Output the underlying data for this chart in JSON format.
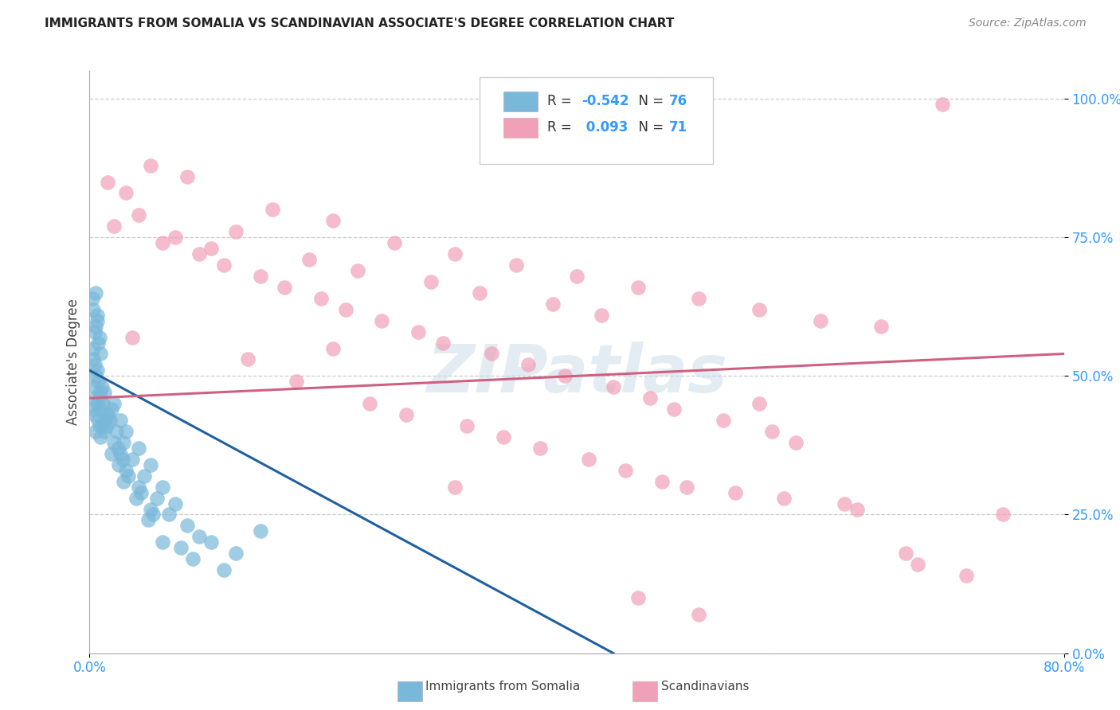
{
  "title": "IMMIGRANTS FROM SOMALIA VS SCANDINAVIAN ASSOCIATE'S DEGREE CORRELATION CHART",
  "source": "Source: ZipAtlas.com",
  "ylabel": "Associate's Degree",
  "ytick_labels": [
    "0.0%",
    "25.0%",
    "50.0%",
    "75.0%",
    "100.0%"
  ],
  "ytick_values": [
    0.0,
    25.0,
    50.0,
    75.0,
    100.0
  ],
  "xtick_left_label": "0.0%",
  "xtick_right_label": "80.0%",
  "xmin": 0.0,
  "xmax": 80.0,
  "ymin": 0.0,
  "ymax": 105.0,
  "somalia_color": "#7ab8d9",
  "scandinavian_color": "#f0a0b8",
  "somalia_line_color": "#2060a0",
  "scandinavian_line_color": "#d06080",
  "watermark": "ZIPatlas",
  "legend_r1": "R = -0.542",
  "legend_n1": "N = 76",
  "legend_r2": "R =  0.093",
  "legend_n2": "N = 71",
  "somalia_label": "Immigrants from Somalia",
  "scandinavian_label": "Scandinavians",
  "somalia_scatter": [
    [
      0.3,
      62
    ],
    [
      0.5,
      65
    ],
    [
      0.6,
      60
    ],
    [
      0.4,
      58
    ],
    [
      0.7,
      56
    ],
    [
      0.2,
      64
    ],
    [
      0.8,
      57
    ],
    [
      0.5,
      59
    ],
    [
      0.3,
      55
    ],
    [
      0.6,
      61
    ],
    [
      0.4,
      52
    ],
    [
      0.9,
      54
    ],
    [
      0.5,
      50
    ],
    [
      0.3,
      53
    ],
    [
      0.6,
      51
    ],
    [
      0.4,
      48
    ],
    [
      0.7,
      49
    ],
    [
      0.8,
      47
    ],
    [
      0.5,
      46
    ],
    [
      0.3,
      44
    ],
    [
      0.6,
      45
    ],
    [
      0.4,
      43
    ],
    [
      0.7,
      42
    ],
    [
      0.8,
      41
    ],
    [
      0.5,
      40
    ],
    [
      1.0,
      48
    ],
    [
      1.2,
      47
    ],
    [
      0.9,
      46
    ],
    [
      1.1,
      45
    ],
    [
      0.8,
      44
    ],
    [
      1.5,
      43
    ],
    [
      1.3,
      42
    ],
    [
      1.0,
      41
    ],
    [
      1.2,
      40
    ],
    [
      0.9,
      39
    ],
    [
      2.0,
      45
    ],
    [
      1.8,
      44
    ],
    [
      1.5,
      43
    ],
    [
      1.7,
      42
    ],
    [
      1.4,
      41
    ],
    [
      2.5,
      42
    ],
    [
      2.2,
      40
    ],
    [
      2.0,
      38
    ],
    [
      2.3,
      37
    ],
    [
      1.8,
      36
    ],
    [
      3.0,
      40
    ],
    [
      2.8,
      38
    ],
    [
      2.5,
      36
    ],
    [
      2.7,
      35
    ],
    [
      2.4,
      34
    ],
    [
      4.0,
      37
    ],
    [
      3.5,
      35
    ],
    [
      3.0,
      33
    ],
    [
      3.2,
      32
    ],
    [
      2.8,
      31
    ],
    [
      5.0,
      34
    ],
    [
      4.5,
      32
    ],
    [
      4.0,
      30
    ],
    [
      4.2,
      29
    ],
    [
      3.8,
      28
    ],
    [
      6.0,
      30
    ],
    [
      5.5,
      28
    ],
    [
      5.0,
      26
    ],
    [
      5.2,
      25
    ],
    [
      4.8,
      24
    ],
    [
      7.0,
      27
    ],
    [
      6.5,
      25
    ],
    [
      8.0,
      23
    ],
    [
      9.0,
      21
    ],
    [
      10.0,
      20
    ],
    [
      12.0,
      18
    ],
    [
      14.0,
      22
    ],
    [
      6.0,
      20
    ],
    [
      7.5,
      19
    ],
    [
      8.5,
      17
    ],
    [
      11.0,
      15
    ]
  ],
  "scandinavian_scatter": [
    [
      1.5,
      85
    ],
    [
      5.0,
      88
    ],
    [
      15.0,
      80
    ],
    [
      3.0,
      83
    ],
    [
      8.0,
      86
    ],
    [
      20.0,
      78
    ],
    [
      12.0,
      76
    ],
    [
      25.0,
      74
    ],
    [
      7.0,
      75
    ],
    [
      30.0,
      72
    ],
    [
      10.0,
      73
    ],
    [
      35.0,
      70
    ],
    [
      18.0,
      71
    ],
    [
      40.0,
      68
    ],
    [
      22.0,
      69
    ],
    [
      45.0,
      66
    ],
    [
      28.0,
      67
    ],
    [
      50.0,
      64
    ],
    [
      32.0,
      65
    ],
    [
      55.0,
      62
    ],
    [
      38.0,
      63
    ],
    [
      60.0,
      60
    ],
    [
      42.0,
      61
    ],
    [
      65.0,
      59
    ],
    [
      70.0,
      99
    ],
    [
      2.0,
      77
    ],
    [
      4.0,
      79
    ],
    [
      6.0,
      74
    ],
    [
      9.0,
      72
    ],
    [
      11.0,
      70
    ],
    [
      14.0,
      68
    ],
    [
      16.0,
      66
    ],
    [
      19.0,
      64
    ],
    [
      21.0,
      62
    ],
    [
      24.0,
      60
    ],
    [
      27.0,
      58
    ],
    [
      29.0,
      56
    ],
    [
      33.0,
      54
    ],
    [
      36.0,
      52
    ],
    [
      39.0,
      50
    ],
    [
      43.0,
      48
    ],
    [
      46.0,
      46
    ],
    [
      48.0,
      44
    ],
    [
      52.0,
      42
    ],
    [
      56.0,
      40
    ],
    [
      58.0,
      38
    ],
    [
      3.5,
      57
    ],
    [
      13.0,
      53
    ],
    [
      17.0,
      49
    ],
    [
      23.0,
      45
    ],
    [
      26.0,
      43
    ],
    [
      31.0,
      41
    ],
    [
      34.0,
      39
    ],
    [
      37.0,
      37
    ],
    [
      41.0,
      35
    ],
    [
      44.0,
      33
    ],
    [
      47.0,
      31
    ],
    [
      49.0,
      30
    ],
    [
      53.0,
      29
    ],
    [
      57.0,
      28
    ],
    [
      62.0,
      27
    ],
    [
      63.0,
      26
    ],
    [
      67.0,
      18
    ],
    [
      72.0,
      14
    ],
    [
      45.0,
      10
    ],
    [
      50.0,
      7
    ],
    [
      30.0,
      30
    ],
    [
      55.0,
      45
    ],
    [
      20.0,
      55
    ],
    [
      68.0,
      16
    ],
    [
      75.0,
      25
    ]
  ],
  "somalia_trendline": {
    "x_start": 0.0,
    "x_end": 43.0,
    "y_start": 51.0,
    "y_end": 0.0
  },
  "scandinavian_trendline": {
    "x_start": 0.0,
    "x_end": 80.0,
    "y_start": 46.0,
    "y_end": 54.0
  }
}
